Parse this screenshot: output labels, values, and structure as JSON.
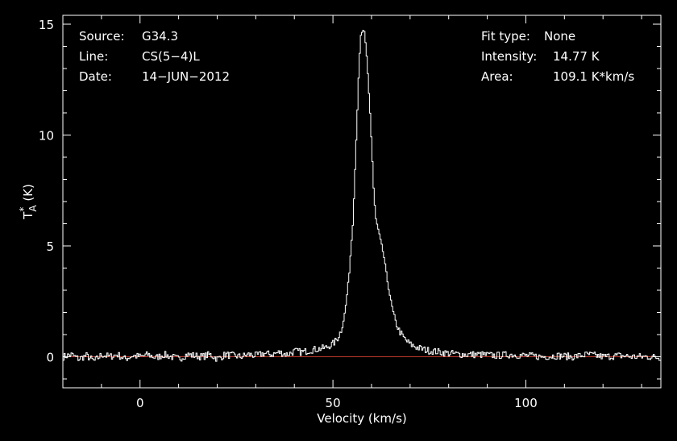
{
  "theme": {
    "background": "#000000",
    "foreground": "#ffffff",
    "baseline_color": "#c0392b"
  },
  "chart_data": {
    "type": "line",
    "style": "step",
    "title": "",
    "xlabel": "Velocity (km/s)",
    "ylabel": "T*A (K)",
    "xlim": [
      -20,
      135
    ],
    "ylim": [
      -1.4,
      15.4
    ],
    "xticks": [
      0,
      50,
      100
    ],
    "yticks": [
      0,
      5,
      10,
      15
    ],
    "grid": false,
    "baseline": 0,
    "info_left": [
      {
        "label": "Source:",
        "value": "G34.3"
      },
      {
        "label": "Line:",
        "value": "CS(5−4)L"
      },
      {
        "label": "Date:",
        "value": "14−JUN−2012"
      }
    ],
    "info_right": [
      {
        "label": "Fit type:",
        "value": "None"
      },
      {
        "label": "Intensity:",
        "value": "14.77 K"
      },
      {
        "label": "Area:",
        "value": "109.1 K*km/s"
      }
    ],
    "series": [
      {
        "x": [
          -20,
          -18,
          -16,
          -14,
          -12,
          -10,
          -8,
          -6,
          -4,
          -2,
          0,
          2,
          4,
          6,
          8,
          10,
          12,
          14,
          16,
          18,
          20,
          22,
          24,
          26,
          28,
          30,
          32,
          34,
          36,
          38,
          40,
          42,
          44,
          46,
          48,
          50,
          51,
          52,
          53,
          54,
          55,
          55.5,
          56,
          56.5,
          57,
          57.5,
          58,
          58.5,
          59,
          59.5,
          60,
          60.5,
          61,
          61.5,
          62,
          63,
          64,
          65,
          66,
          67,
          68,
          69,
          70,
          72,
          74,
          76,
          78,
          80,
          84,
          88,
          92,
          96,
          100,
          104,
          108,
          112,
          116,
          120,
          124,
          128,
          132,
          135
        ],
        "y": [
          0.0,
          0.1,
          -0.1,
          0.05,
          -0.2,
          0.1,
          0.0,
          0.1,
          -0.1,
          0.05,
          0.0,
          0.1,
          -0.05,
          0.1,
          0.0,
          -0.1,
          0.1,
          0.05,
          0.0,
          0.1,
          -0.1,
          0.1,
          0.05,
          0.0,
          0.1,
          0.05,
          0.15,
          0.1,
          0.2,
          0.1,
          0.25,
          0.2,
          0.3,
          0.35,
          0.4,
          0.6,
          0.8,
          1.2,
          2.0,
          3.6,
          6.0,
          8.0,
          10.3,
          12.5,
          14.4,
          14.7,
          14.6,
          13.8,
          12.5,
          11.0,
          9.2,
          7.2,
          6.2,
          5.8,
          5.4,
          4.6,
          3.4,
          2.4,
          1.6,
          1.2,
          0.9,
          0.7,
          0.55,
          0.4,
          0.3,
          0.25,
          0.2,
          0.15,
          0.1,
          0.1,
          0.05,
          0.1,
          0.05,
          0.0,
          0.05,
          0.0,
          0.1,
          0.0,
          0.05,
          0.0,
          0.0,
          -0.05
        ]
      }
    ]
  }
}
